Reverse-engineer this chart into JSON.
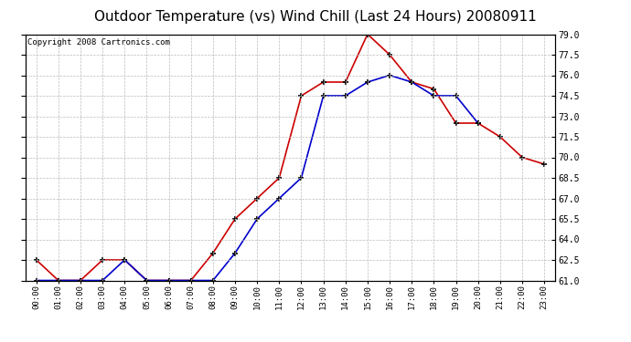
{
  "title": "Outdoor Temperature (vs) Wind Chill (Last 24 Hours) 20080911",
  "copyright": "Copyright 2008 Cartronics.com",
  "x_labels": [
    "00:00",
    "01:00",
    "02:00",
    "03:00",
    "04:00",
    "05:00",
    "06:00",
    "07:00",
    "08:00",
    "09:00",
    "10:00",
    "11:00",
    "12:00",
    "13:00",
    "14:00",
    "15:00",
    "16:00",
    "17:00",
    "18:00",
    "19:00",
    "20:00",
    "21:00",
    "22:00",
    "23:00"
  ],
  "temp_red": [
    62.5,
    61.0,
    61.0,
    62.5,
    62.5,
    61.0,
    61.0,
    61.0,
    63.0,
    65.5,
    67.0,
    68.5,
    74.5,
    75.5,
    75.5,
    79.0,
    77.5,
    75.5,
    75.0,
    72.5,
    72.5,
    71.5,
    70.0,
    69.5
  ],
  "wind_blue": [
    61.0,
    61.0,
    61.0,
    61.0,
    62.5,
    61.0,
    61.0,
    61.0,
    61.0,
    63.0,
    65.5,
    67.0,
    68.5,
    74.5,
    74.5,
    75.5,
    76.0,
    75.5,
    74.5,
    74.5,
    72.5,
    null,
    null,
    null
  ],
  "ylim": [
    61.0,
    79.0
  ],
  "yticks": [
    61.0,
    62.5,
    64.0,
    65.5,
    67.0,
    68.5,
    70.0,
    71.5,
    73.0,
    74.5,
    76.0,
    77.5,
    79.0
  ],
  "red_color": "#cc0000",
  "blue_color": "#0000cc",
  "bg_color": "#ffffff",
  "plot_bg_color": "#ffffff",
  "grid_color": "#bbbbbb",
  "title_fontsize": 11,
  "copyright_fontsize": 6.5
}
